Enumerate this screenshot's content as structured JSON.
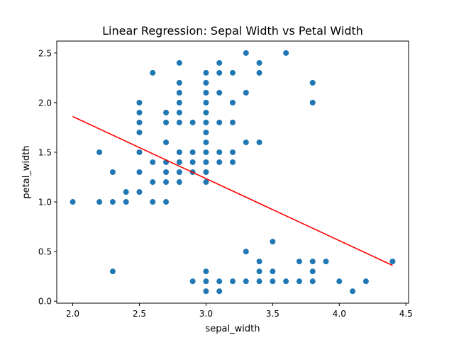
{
  "chart_data": {
    "type": "scatter",
    "title": "Linear Regression: Sepal Width vs Petal Width",
    "xlabel": "sepal_width",
    "ylabel": "petal_width",
    "xlim": [
      1.88,
      4.52
    ],
    "ylim": [
      -0.02,
      2.62
    ],
    "x_ticks": [
      2.0,
      2.5,
      3.0,
      3.5,
      4.0,
      4.5
    ],
    "x_tick_labels": [
      "2.0",
      "2.5",
      "3.0",
      "3.5",
      "4.0",
      "4.5"
    ],
    "y_ticks": [
      0.0,
      0.5,
      1.0,
      1.5,
      2.0,
      2.5
    ],
    "y_tick_labels": [
      "0.0",
      "0.5",
      "1.0",
      "1.5",
      "2.0",
      "2.5"
    ],
    "grid": false,
    "colors": {
      "points": "#1f77b4",
      "line": "#ff0000"
    },
    "points": [
      [
        2.0,
        1.0
      ],
      [
        2.2,
        1.5
      ],
      [
        2.2,
        1.0
      ],
      [
        2.3,
        1.3
      ],
      [
        2.3,
        1.0
      ],
      [
        2.3,
        0.3
      ],
      [
        2.4,
        1.1
      ],
      [
        2.4,
        1.0
      ],
      [
        2.5,
        2.0
      ],
      [
        2.5,
        1.9
      ],
      [
        2.5,
        1.8
      ],
      [
        2.5,
        1.7
      ],
      [
        2.5,
        1.5
      ],
      [
        2.5,
        1.3
      ],
      [
        2.5,
        1.1
      ],
      [
        2.6,
        2.3
      ],
      [
        2.6,
        1.4
      ],
      [
        2.6,
        1.2
      ],
      [
        2.6,
        1.0
      ],
      [
        2.7,
        1.9
      ],
      [
        2.7,
        1.8
      ],
      [
        2.7,
        1.6
      ],
      [
        2.7,
        1.4
      ],
      [
        2.7,
        1.3
      ],
      [
        2.7,
        1.2
      ],
      [
        2.7,
        1.0
      ],
      [
        2.8,
        2.4
      ],
      [
        2.8,
        2.2
      ],
      [
        2.8,
        2.1
      ],
      [
        2.8,
        2.0
      ],
      [
        2.8,
        1.9
      ],
      [
        2.8,
        1.8
      ],
      [
        2.8,
        1.5
      ],
      [
        2.8,
        1.4
      ],
      [
        2.8,
        1.3
      ],
      [
        2.8,
        1.2
      ],
      [
        2.9,
        1.8
      ],
      [
        2.9,
        1.5
      ],
      [
        2.9,
        1.4
      ],
      [
        2.9,
        1.3
      ],
      [
        2.9,
        0.2
      ],
      [
        3.0,
        2.3
      ],
      [
        3.0,
        2.2
      ],
      [
        3.0,
        2.1
      ],
      [
        3.0,
        2.0
      ],
      [
        3.0,
        1.9
      ],
      [
        3.0,
        1.8
      ],
      [
        3.0,
        1.7
      ],
      [
        3.0,
        1.6
      ],
      [
        3.0,
        1.5
      ],
      [
        3.0,
        1.4
      ],
      [
        3.0,
        1.3
      ],
      [
        3.0,
        1.2
      ],
      [
        3.0,
        0.3
      ],
      [
        3.0,
        0.2
      ],
      [
        3.0,
        0.1
      ],
      [
        3.1,
        2.4
      ],
      [
        3.1,
        2.3
      ],
      [
        3.1,
        2.1
      ],
      [
        3.1,
        1.8
      ],
      [
        3.1,
        1.5
      ],
      [
        3.1,
        1.4
      ],
      [
        3.1,
        0.2
      ],
      [
        3.1,
        0.1
      ],
      [
        3.2,
        2.3
      ],
      [
        3.2,
        2.0
      ],
      [
        3.2,
        1.8
      ],
      [
        3.2,
        1.5
      ],
      [
        3.2,
        1.4
      ],
      [
        3.2,
        0.2
      ],
      [
        3.3,
        2.5
      ],
      [
        3.3,
        2.1
      ],
      [
        3.3,
        1.6
      ],
      [
        3.3,
        0.5
      ],
      [
        3.3,
        0.2
      ],
      [
        3.4,
        2.4
      ],
      [
        3.4,
        2.3
      ],
      [
        3.4,
        1.6
      ],
      [
        3.4,
        0.4
      ],
      [
        3.4,
        0.3
      ],
      [
        3.4,
        0.2
      ],
      [
        3.5,
        0.6
      ],
      [
        3.5,
        0.3
      ],
      [
        3.5,
        0.2
      ],
      [
        3.6,
        2.5
      ],
      [
        3.6,
        0.2
      ],
      [
        3.7,
        0.4
      ],
      [
        3.7,
        0.2
      ],
      [
        3.8,
        2.2
      ],
      [
        3.8,
        2.0
      ],
      [
        3.8,
        0.4
      ],
      [
        3.8,
        0.3
      ],
      [
        3.8,
        0.2
      ],
      [
        3.9,
        0.4
      ],
      [
        4.0,
        0.2
      ],
      [
        4.1,
        0.1
      ],
      [
        4.2,
        0.2
      ],
      [
        4.4,
        0.4
      ]
    ],
    "regression_line": {
      "x": [
        2.0,
        4.4
      ],
      "y": [
        1.86,
        0.36
      ]
    }
  }
}
